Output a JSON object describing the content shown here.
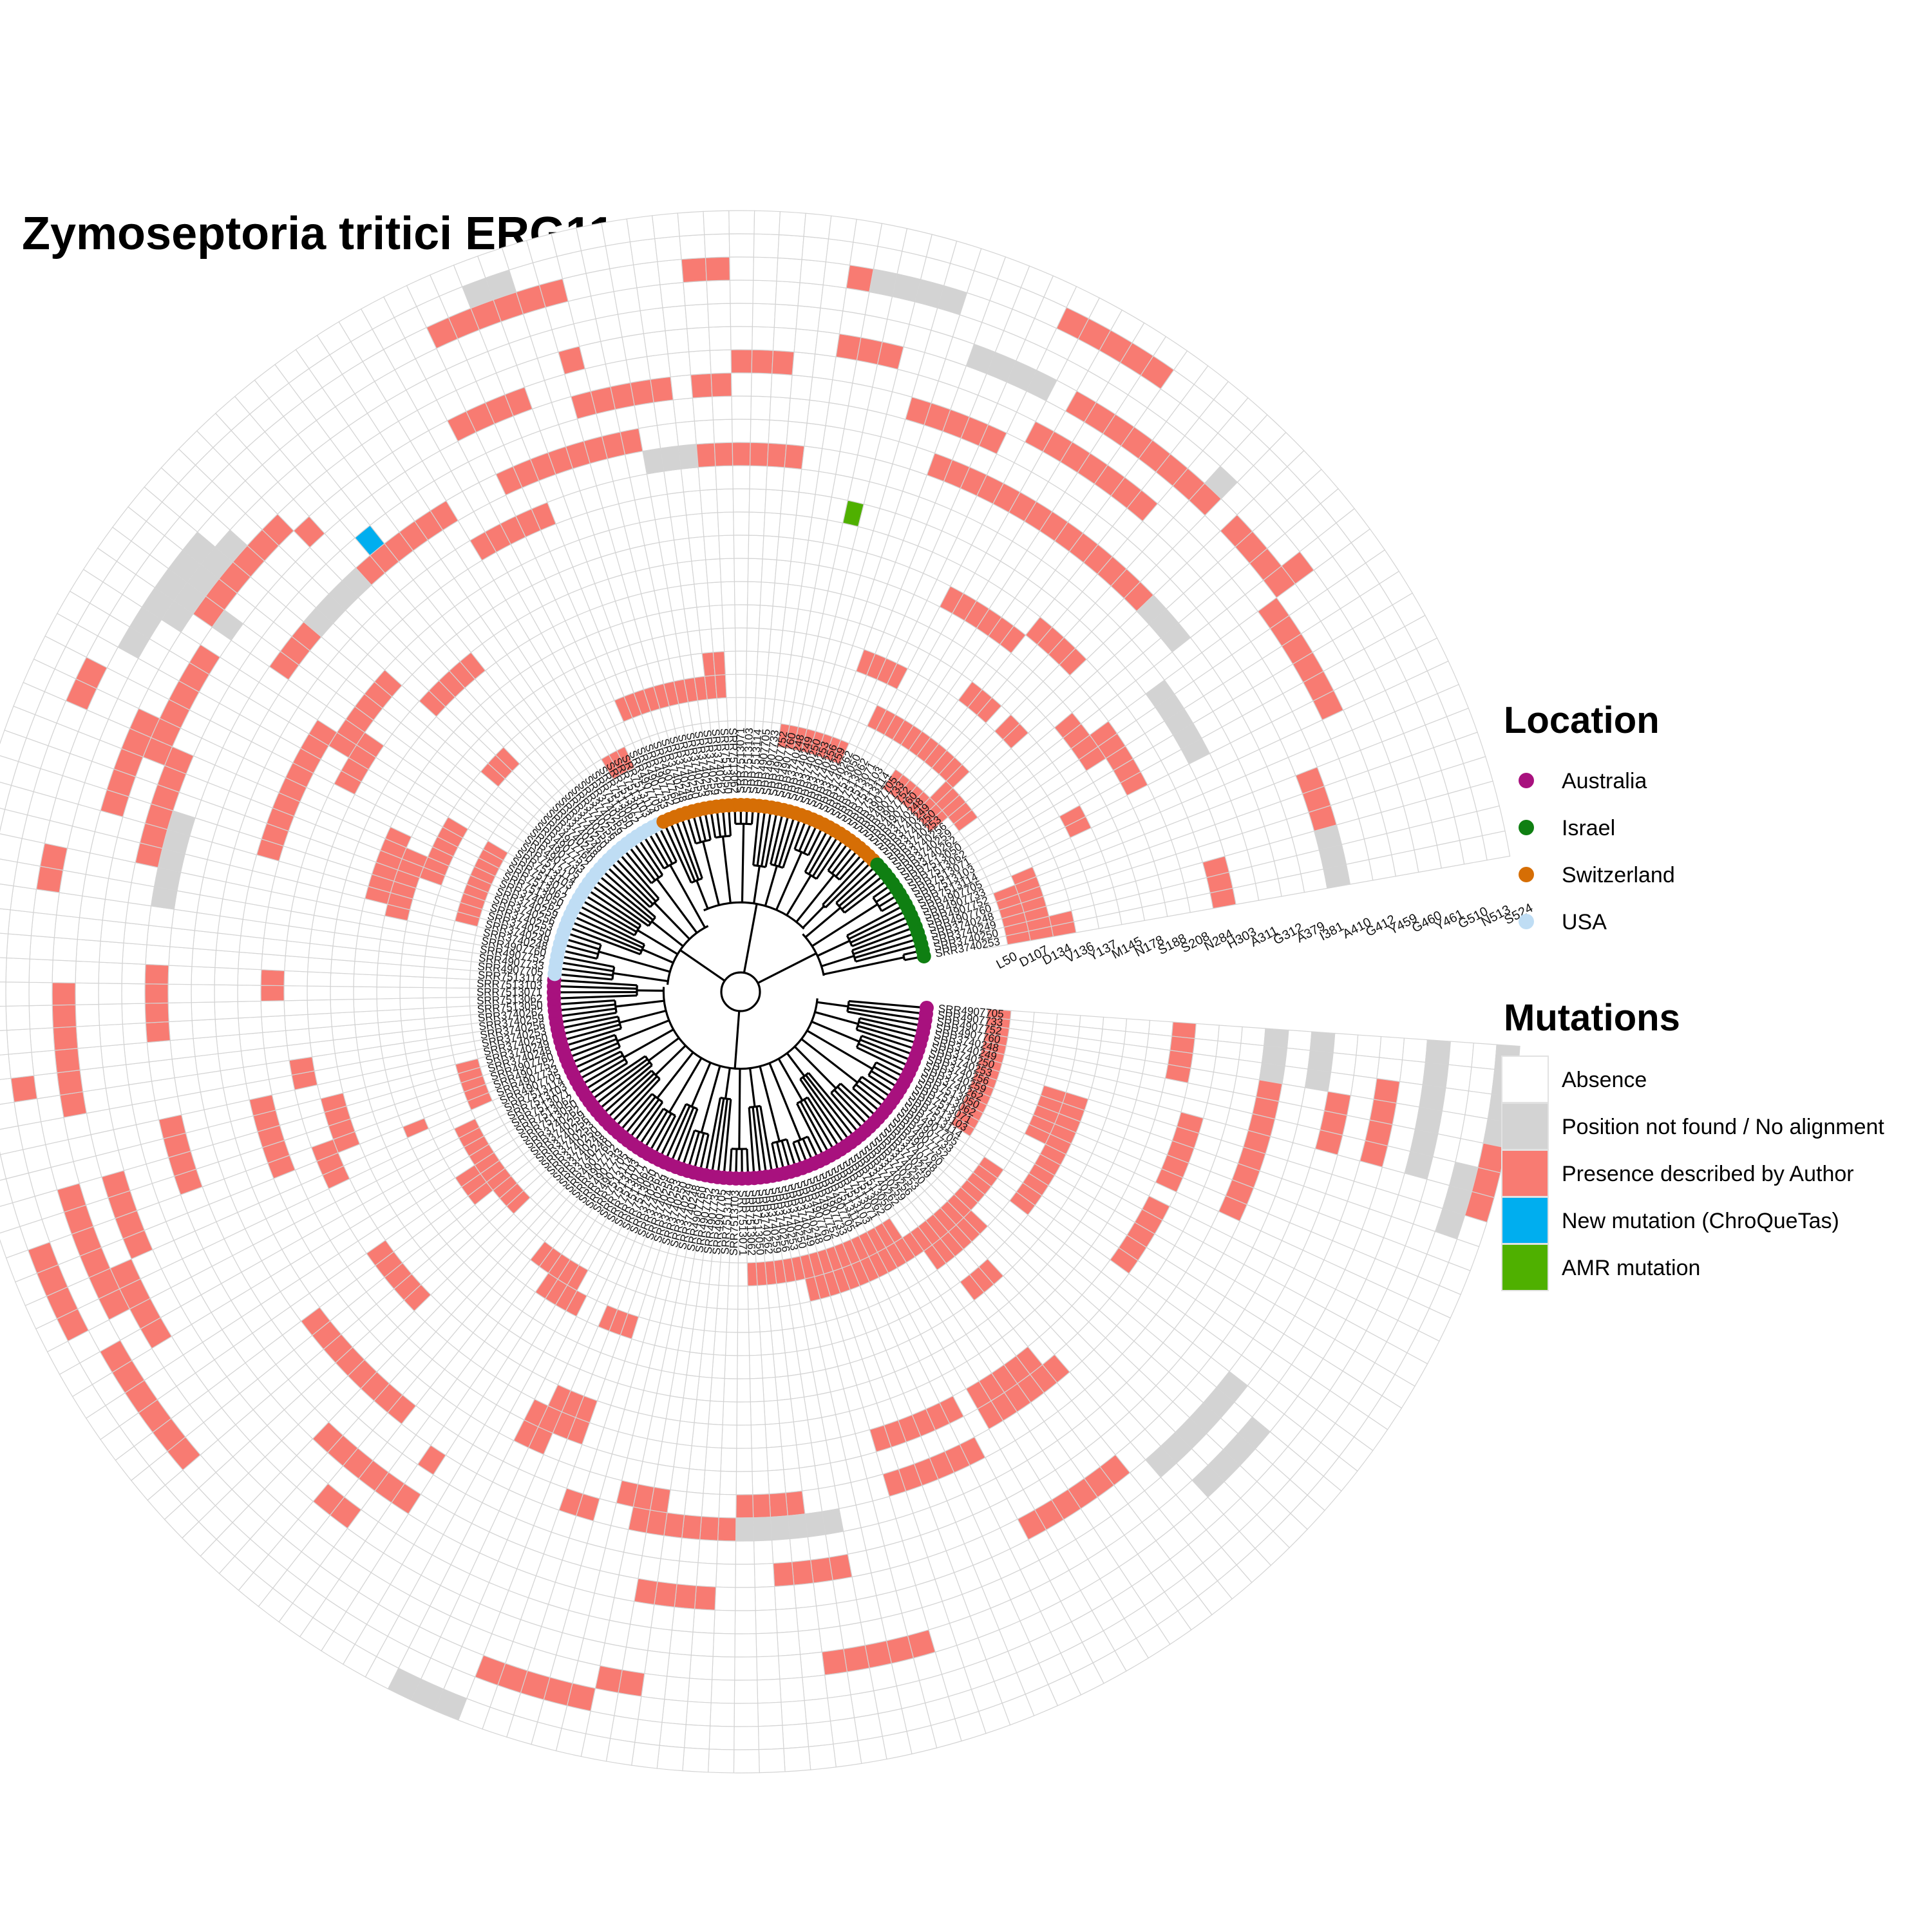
{
  "title": "Zymoseptoria tritici ERG11 mutations",
  "location_legend": {
    "title": "Location",
    "entries": [
      {
        "label": "Australia",
        "color": "#A8117E"
      },
      {
        "label": "Israel",
        "color": "#0F7F12"
      },
      {
        "label": "Switzerland",
        "color": "#D66E05"
      },
      {
        "label": "USA",
        "color": "#BFDDF4"
      }
    ]
  },
  "mutations_legend": {
    "title": "Mutations",
    "entries": [
      {
        "label": "Absence",
        "color": "#FFFFFF"
      },
      {
        "label": "Position not found / No alignment",
        "color": "#D3D3D3"
      },
      {
        "label": "Presence described by Author",
        "color": "#F87B72"
      },
      {
        "label": "New mutation (ChroQueTas)",
        "color": "#00AEEF"
      },
      {
        "label": "AMR mutation",
        "color": "#4FB000"
      }
    ]
  },
  "mutation_columns": [
    "L50",
    "D107",
    "D134",
    "V136",
    "Y137",
    "M145",
    "N178",
    "S188",
    "S208",
    "N284",
    "H303",
    "A311",
    "G312",
    "A379",
    "I381",
    "A410",
    "G412",
    "Y459",
    "G460",
    "Y461",
    "G510",
    "N513",
    "S524"
  ],
  "tip_labels": [
    "SRR4907705",
    "SRR4907733",
    "SRR4907752",
    "SRR4907760",
    "SRR3740248",
    "SRR3740249",
    "SRR3740250",
    "SRR3740253",
    "SRR3740256",
    "SRR3740259",
    "SRR3740262",
    "SRR7513050",
    "SRR7513062",
    "SRR7513071",
    "SRR7513103",
    "SRR7513114"
  ],
  "locations": [
    {
      "name": "Israel",
      "count": 18
    },
    {
      "name": "Switzerland",
      "count": 38
    },
    {
      "name": "USA",
      "count": 32
    },
    {
      "name": "Australia",
      "count": 96
    }
  ]
}
